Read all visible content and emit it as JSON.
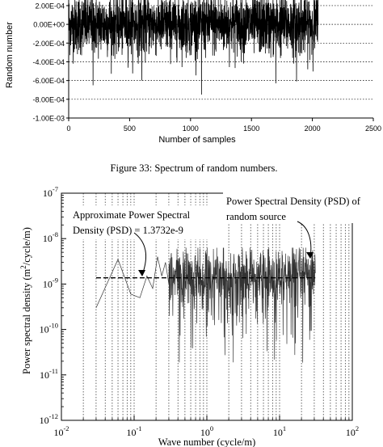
{
  "chart_data": [
    {
      "type": "line",
      "ylabel": "Random number",
      "xlabel": "Number of samples",
      "x_ticks": [
        "0",
        "500",
        "1000",
        "1500",
        "2000",
        "2500"
      ],
      "y_ticks": [
        "2.00E-04",
        "0.00E+00",
        "-2.00E-04",
        "-4.00E-04",
        "-6.00E-04",
        "-8.00E-04",
        "-1.00E-03"
      ],
      "xlim": [
        0,
        2500
      ],
      "ylim": [
        -0.001,
        0.00026
      ],
      "n_samples": 2048,
      "noise_std": 0.00016,
      "notable_minima": [
        {
          "x": 200,
          "y": -0.00065
        },
        {
          "x": 600,
          "y": -0.0006
        },
        {
          "x": 1090,
          "y": -0.00075
        },
        {
          "x": 1700,
          "y": -0.00063
        },
        {
          "x": 1870,
          "y": -0.00061
        }
      ],
      "grid": "horizontal dashed",
      "caption": "Figure 33: Spectrum of random numbers."
    },
    {
      "type": "line",
      "x_scale": "log",
      "y_scale": "log",
      "xlabel": "Wave number (cycle/m)",
      "ylabel_parts": {
        "pre": "Power spectral density (m",
        "sup": "2",
        "post": "/cycle/m)"
      },
      "xlim": [
        0.01,
        100
      ],
      "ylim": [
        1e-12,
        1e-07
      ],
      "x_ticks": [
        {
          "m": "10",
          "e": "-2"
        },
        {
          "m": "10",
          "e": "-1"
        },
        {
          "m": "10",
          "e": "0"
        },
        {
          "m": "10",
          "e": "1"
        },
        {
          "m": "10",
          "e": "2"
        }
      ],
      "y_ticks": [
        {
          "m": "10",
          "e": "-7"
        },
        {
          "m": "10",
          "e": "-8"
        },
        {
          "m": "10",
          "e": "-9"
        },
        {
          "m": "10",
          "e": "-10"
        },
        {
          "m": "10",
          "e": "-11"
        },
        {
          "m": "10",
          "e": "-12"
        }
      ],
      "psd_level": 1.3732e-09,
      "psd_x_range": [
        0.03,
        31
      ],
      "low_freq_points": [
        {
          "x": 0.03,
          "y": 3e-10
        },
        {
          "x": 0.06,
          "y": 3.5e-09
        },
        {
          "x": 0.09,
          "y": 6e-10
        },
        {
          "x": 0.12,
          "y": 5e-10
        },
        {
          "x": 0.15,
          "y": 1.5e-09
        },
        {
          "x": 0.18,
          "y": 8e-10
        },
        {
          "x": 0.21,
          "y": 4e-09
        },
        {
          "x": 0.24,
          "y": 1.5e-09
        },
        {
          "x": 0.27,
          "y": 3e-09
        },
        {
          "x": 0.3,
          "y": 1e-09
        }
      ],
      "noise_x_range": [
        0.3,
        31
      ],
      "annotations": [
        {
          "text_lines": [
            "Approximate Power Spectral",
            "Density (PSD) = 1.3732e-9"
          ]
        },
        {
          "text_lines": [
            "Power Spectral Density (PSD) of",
            "random source"
          ]
        }
      ],
      "grid": "vertical dashed"
    }
  ]
}
